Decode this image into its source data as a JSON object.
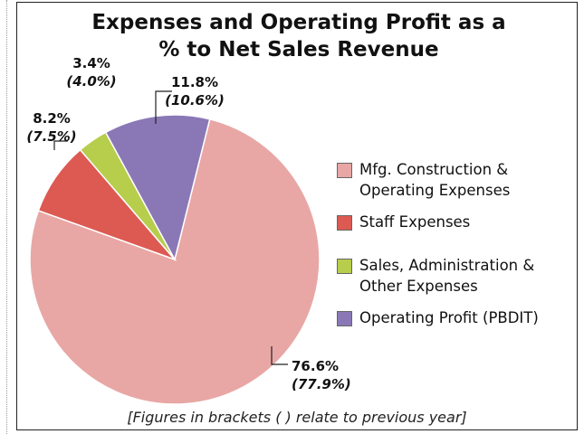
{
  "chart_data": {
    "type": "pie",
    "title": "Expenses and Operating Profit as a % to Net Sales Revenue",
    "categories": [
      "Mfg. Construction & Operating Expenses",
      "Staff Expenses",
      "Sales, Administration & Other Expenses",
      "Operating Profit (PBDIT)"
    ],
    "values": [
      76.6,
      8.2,
      3.4,
      11.8
    ],
    "value_labels": [
      "76.6%",
      "8.2%",
      "3.4%",
      "11.8%"
    ],
    "previous_values": [
      77.9,
      7.5,
      4.0,
      10.6
    ],
    "previous_value_labels": [
      "(77.9%)",
      "(7.5%)",
      "(4.0%)",
      "(10.6%)"
    ],
    "colors": [
      "#e8a7a5",
      "#dc5a52",
      "#b7cd4c",
      "#8a78b6"
    ],
    "legend": "right",
    "note": "[Figures in brackets ( ) relate to previous year]"
  }
}
